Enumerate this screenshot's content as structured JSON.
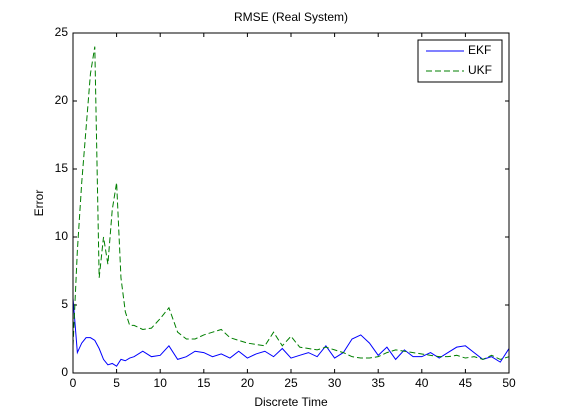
{
  "chart_data": {
    "type": "line",
    "title": "RMSE (Real System)",
    "x_label": "Discrete Time",
    "y_label": "Error",
    "x": [
      0,
      0.5,
      1,
      1.5,
      2,
      2.5,
      3,
      3.5,
      4,
      4.5,
      5,
      5.5,
      6,
      6.5,
      7,
      8,
      9,
      10,
      11,
      12,
      13,
      14,
      15,
      16,
      17,
      18,
      19,
      20,
      21,
      22,
      23,
      24,
      25,
      26,
      27,
      28,
      29,
      30,
      31,
      32,
      33,
      34,
      35,
      36,
      37,
      38,
      39,
      40,
      41,
      42,
      43,
      44,
      45,
      46,
      47,
      48,
      49,
      50
    ],
    "series": [
      {
        "name": "EKF",
        "color": "#0000ff",
        "dash": "solid",
        "values": [
          5.5,
          1.5,
          2.2,
          2.6,
          2.6,
          2.4,
          1.8,
          1.0,
          0.6,
          0.7,
          0.5,
          1.0,
          0.9,
          1.1,
          1.2,
          1.6,
          1.2,
          1.3,
          2.0,
          1.0,
          1.2,
          1.6,
          1.5,
          1.2,
          1.4,
          1.1,
          1.6,
          1.1,
          1.4,
          1.6,
          1.2,
          1.8,
          1.1,
          1.3,
          1.5,
          1.2,
          2.0,
          1.1,
          1.5,
          2.5,
          2.8,
          2.2,
          1.3,
          1.9,
          1.0,
          1.7,
          1.2,
          1.2,
          1.5,
          1.1,
          1.5,
          1.9,
          2.0,
          1.5,
          1.0,
          1.2,
          0.8,
          1.8
        ]
      },
      {
        "name": "UKF",
        "color": "#007f00",
        "dash": "dashed",
        "values": [
          2,
          9,
          14,
          18,
          22,
          24,
          7,
          10,
          8,
          12,
          14,
          7,
          4.5,
          3.5,
          3.5,
          3.2,
          3.3,
          4,
          4.8,
          3,
          2.5,
          2.5,
          2.8,
          3.0,
          3.2,
          2.6,
          2.4,
          2.2,
          2.1,
          2.0,
          3.0,
          2.0,
          2.7,
          1.9,
          1.8,
          1.7,
          1.9,
          1.7,
          1.5,
          1.2,
          1.1,
          1.1,
          1.2,
          1.5,
          1.7,
          1.6,
          1.5,
          1.4,
          1.3,
          1.2,
          1.2,
          1.3,
          1.1,
          1.2,
          1.0,
          1.3,
          1.0,
          1.2
        ]
      }
    ],
    "xlim": [
      0,
      50
    ],
    "xticks": [
      0,
      5,
      10,
      15,
      20,
      25,
      30,
      35,
      40,
      45,
      50
    ],
    "ylim": [
      0,
      25
    ],
    "yticks": [
      0,
      5,
      10,
      15,
      20,
      25
    ],
    "grid": false,
    "legend": "upper right"
  }
}
